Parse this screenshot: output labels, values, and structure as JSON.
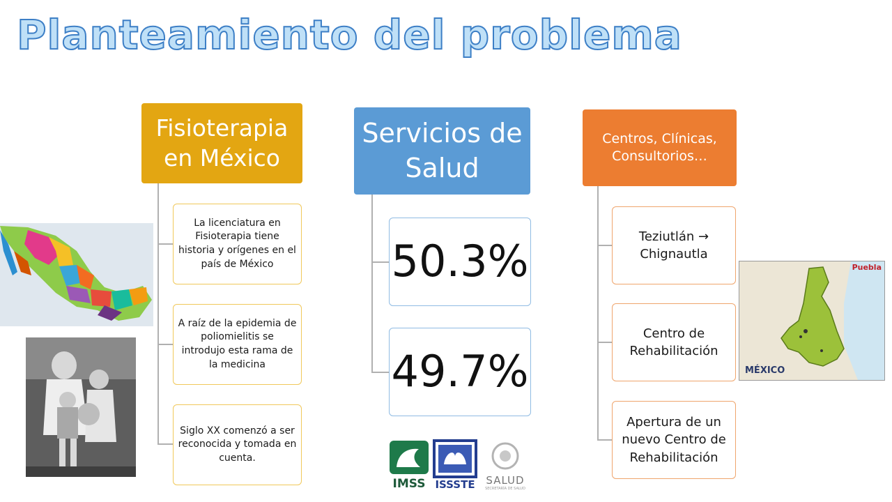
{
  "title": "Planteamiento del problema",
  "columns": [
    {
      "header": "Fisioterapia en México",
      "items": [
        "La licenciatura en Fisioterapia tiene historia y orígenes en el país de México",
        "A raíz de la epidemia de poliomielitis se introdujo esta rama de la medicina",
        "Siglo XX comenzó a ser reconocida y tomada en cuenta."
      ]
    },
    {
      "header": "Servicios de Salud",
      "items": [
        "50.3%",
        "49.7%"
      ]
    },
    {
      "header": "Centros, Clínicas, Consultorios…",
      "items": [
        "Teziutlán → Chignautla",
        "Centro de Rehabilitación",
        "Apertura de un nuevo Centro de Rehabilitación"
      ]
    }
  ],
  "map_labels": {
    "puebla_title": "Puebla",
    "mexico_brand": "MÉXICO"
  },
  "logos": {
    "imss": "IMSS",
    "issste": "ISSSTE",
    "salud": "SALUD",
    "salud_sub": "SECRETARÍA DE SALUD"
  },
  "colors": {
    "yellow": "#e3a612",
    "blue": "#5b9bd5",
    "orange": "#ec7d31"
  }
}
